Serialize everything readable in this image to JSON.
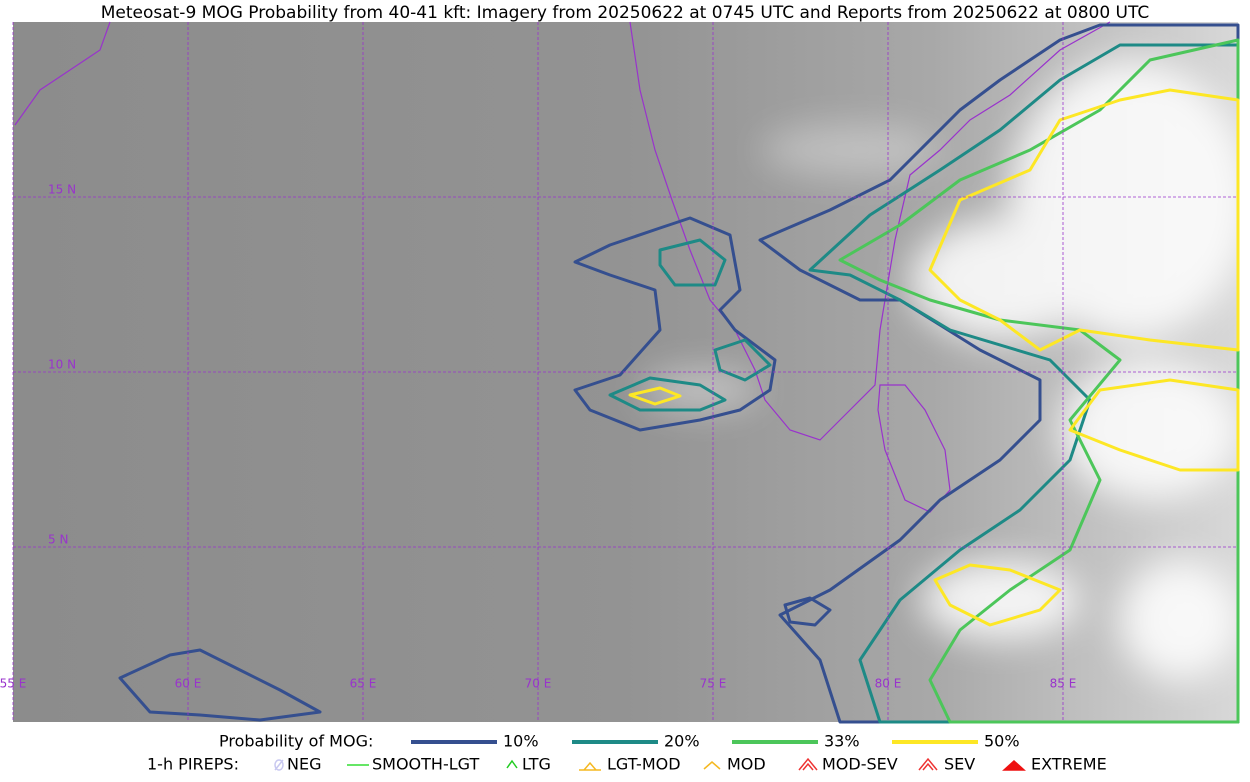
{
  "title": "Meteosat-9 MOG Probability from 40-41 kft: Imagery from 20250622 at 0745 UTC and Reports from 20250622 at 0800 UTC",
  "grid_labels": {
    "lat": [
      "15 N",
      "10 N",
      "5 N"
    ],
    "lon": [
      "55 E",
      "60 E",
      "65 E",
      "70 E",
      "75 E",
      "80 E",
      "85 E"
    ]
  },
  "legend": {
    "probability": {
      "label": "Probability of MOG:",
      "items": [
        {
          "label": "10%",
          "color": "#354f8f"
        },
        {
          "label": "20%",
          "color": "#1e8a86"
        },
        {
          "label": "33%",
          "color": "#4cc65a"
        },
        {
          "label": "50%",
          "color": "#fde725"
        }
      ]
    },
    "pireps": {
      "label": "1-h PIREPS:",
      "items": [
        {
          "label": "NEG",
          "color": "#c8c8f0"
        },
        {
          "label": "SMOOTH-LGT",
          "color": "#33dd33"
        },
        {
          "label": "LTG",
          "color": "#22cc22"
        },
        {
          "label": "LGT-MOD",
          "color": "#f5b820"
        },
        {
          "label": "MOD",
          "color": "#f5b820"
        },
        {
          "label": "MOD-SEV",
          "color": "#ee3333"
        },
        {
          "label": "SEV",
          "color": "#ee3333"
        },
        {
          "label": "EXTREME",
          "color": "#ee1111"
        }
      ]
    }
  }
}
